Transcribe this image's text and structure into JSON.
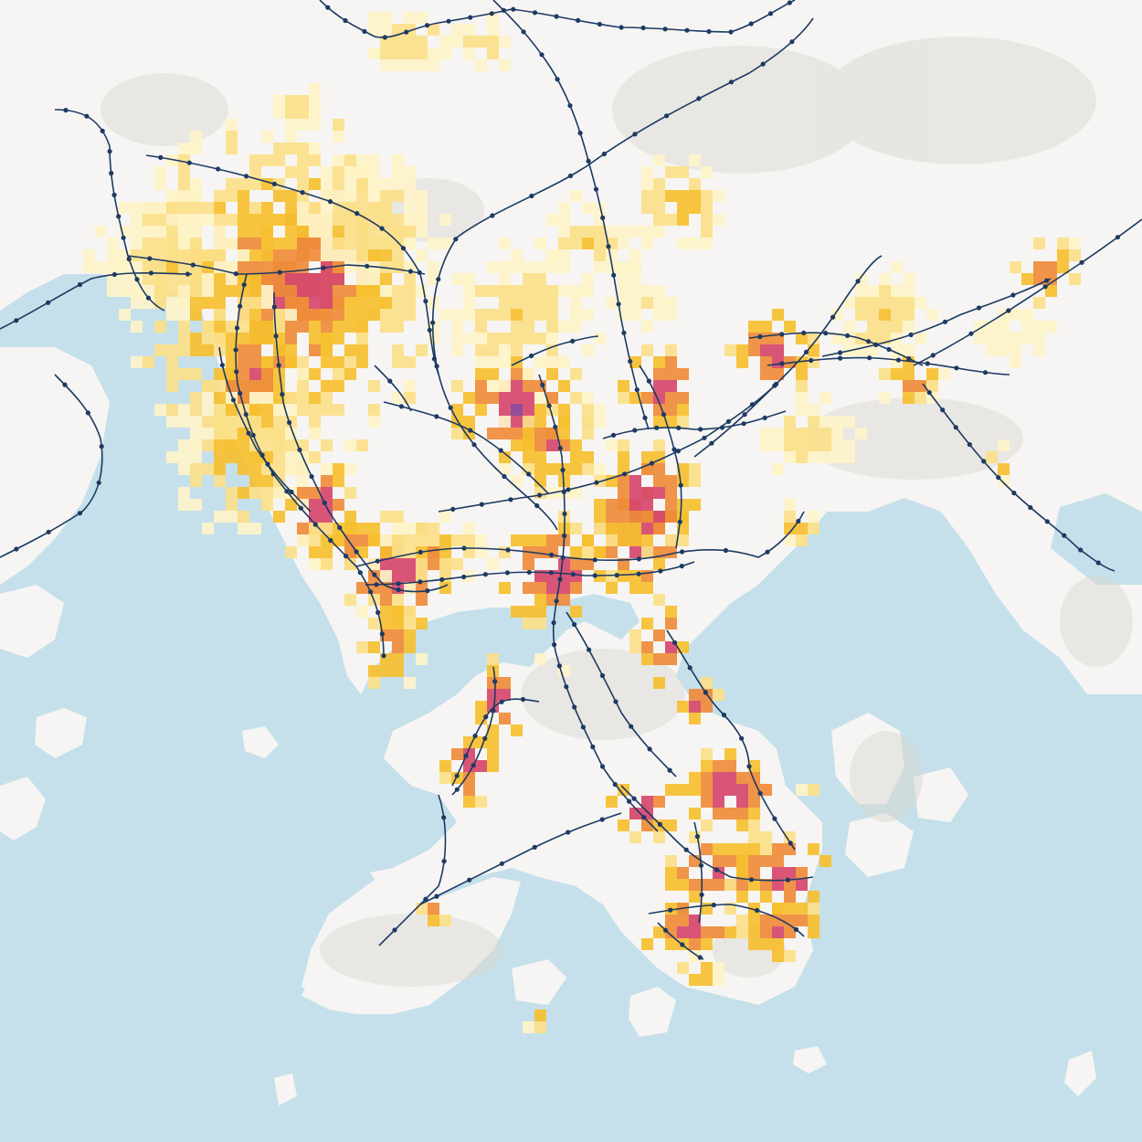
{
  "map": {
    "colors": {
      "water": "#c5e0ea",
      "land": "#f6f5f3",
      "terrain_shade": "#d9d6d1",
      "transit_line": "#1d3a63",
      "density_1": "#fdf3c9",
      "density_2": "#fbe08a",
      "density_3": "#f6bf30",
      "density_4": "#ee8b3a",
      "density_5": "#d6466c",
      "density_6": "#8a3f93"
    },
    "density_levels": [
      1,
      2,
      3,
      4,
      5,
      6
    ],
    "icons": {
      "station": "station-dot-icon"
    }
  }
}
